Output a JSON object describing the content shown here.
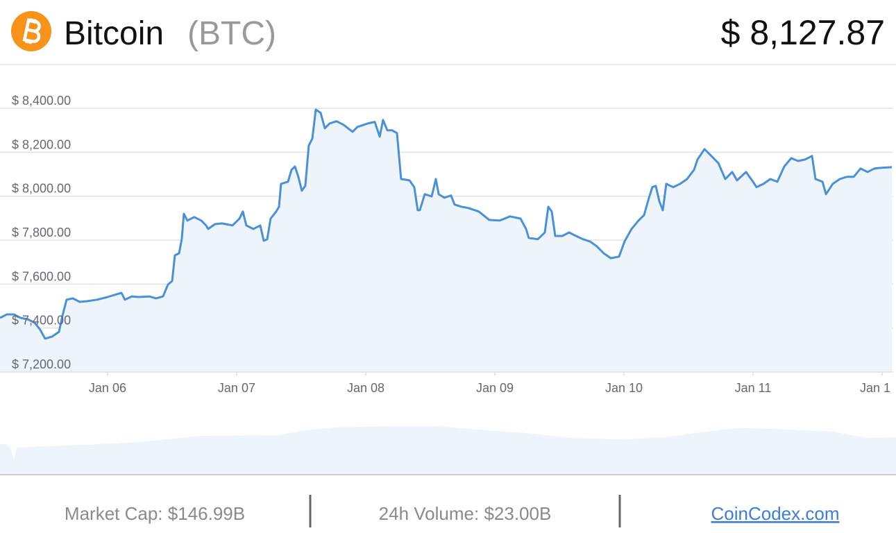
{
  "header": {
    "name": "Bitcoin",
    "symbol": "(BTC)",
    "price": "$ 8,127.87"
  },
  "chart_data": {
    "type": "line",
    "color": "#4a90d9",
    "fill": "#eef4fc",
    "grid": true,
    "xlim": [
      5.167,
      12.086
    ],
    "ylim": [
      7200,
      8400
    ],
    "xticks": [
      {
        "value": 6,
        "label": "Jan 06"
      },
      {
        "value": 7,
        "label": "Jan 07"
      },
      {
        "value": 8,
        "label": "Jan 08"
      },
      {
        "value": 9,
        "label": "Jan 09"
      },
      {
        "value": 10,
        "label": "Jan 10"
      },
      {
        "value": 11,
        "label": "Jan 11"
      },
      {
        "value": 12,
        "label": "Jan 1"
      }
    ],
    "yticks": [
      {
        "value": 7200,
        "label": "$ 7,200.00"
      },
      {
        "value": 7400,
        "label": "$ 7,400.00"
      },
      {
        "value": 7600,
        "label": "$ 7,600.00"
      },
      {
        "value": 7800,
        "label": "$ 7,800.00"
      },
      {
        "value": 8000,
        "label": "$ 8,000.00"
      },
      {
        "value": 8200,
        "label": "$ 8,200.00"
      },
      {
        "value": 8400,
        "label": "$ 8,400.00"
      }
    ],
    "x": [
      5.167,
      5.22,
      5.274,
      5.328,
      5.382,
      5.435,
      5.478,
      5.516,
      5.57,
      5.624,
      5.651,
      5.683,
      5.731,
      5.785,
      5.839,
      5.919,
      6.0,
      6.054,
      6.108,
      6.134,
      6.188,
      6.242,
      6.323,
      6.376,
      6.43,
      6.468,
      6.5,
      6.522,
      6.554,
      6.575,
      6.591,
      6.618,
      6.672,
      6.726,
      6.763,
      6.78,
      6.833,
      6.887,
      6.968,
      7.022,
      7.048,
      7.075,
      7.129,
      7.183,
      7.21,
      7.237,
      7.263,
      7.306,
      7.328,
      7.344,
      7.398,
      7.425,
      7.452,
      7.478,
      7.505,
      7.532,
      7.559,
      7.586,
      7.613,
      7.651,
      7.683,
      7.72,
      7.774,
      7.828,
      7.898,
      7.935,
      8.016,
      8.07,
      8.108,
      8.134,
      8.167,
      8.204,
      8.242,
      8.274,
      8.339,
      8.376,
      8.403,
      8.419,
      8.457,
      8.511,
      8.543,
      8.565,
      8.608,
      8.661,
      8.688,
      8.742,
      8.796,
      8.876,
      8.957,
      9.038,
      9.118,
      9.199,
      9.242,
      9.263,
      9.333,
      9.387,
      9.414,
      9.441,
      9.468,
      9.522,
      9.575,
      9.629,
      9.683,
      9.737,
      9.79,
      9.844,
      9.898,
      9.962,
      10.005,
      10.059,
      10.113,
      10.156,
      10.194,
      10.22,
      10.247,
      10.274,
      10.301,
      10.328,
      10.382,
      10.435,
      10.489,
      10.543,
      10.57,
      10.624,
      10.677,
      10.731,
      10.785,
      10.839,
      10.876,
      10.946,
      11.0,
      11.027,
      11.081,
      11.134,
      11.188,
      11.242,
      11.296,
      11.349,
      11.403,
      11.457,
      11.484,
      11.538,
      11.565,
      11.618,
      11.672,
      11.726,
      11.78,
      11.833,
      11.887,
      11.941,
      11.995,
      12.075
    ],
    "values": [
      7446,
      7462,
      7462,
      7446,
      7440,
      7424,
      7393,
      7352,
      7361,
      7383,
      7456,
      7529,
      7535,
      7519,
      7522,
      7529,
      7541,
      7551,
      7560,
      7529,
      7544,
      7541,
      7544,
      7535,
      7544,
      7598,
      7614,
      7731,
      7740,
      7804,
      7920,
      7889,
      7905,
      7889,
      7867,
      7851,
      7873,
      7876,
      7867,
      7898,
      7930,
      7867,
      7851,
      7867,
      7797,
      7804,
      7898,
      7930,
      7952,
      8056,
      8066,
      8120,
      8135,
      8088,
      8025,
      8047,
      8230,
      8262,
      8394,
      8379,
      8309,
      8331,
      8341,
      8325,
      8293,
      8315,
      8331,
      8338,
      8271,
      8347,
      8300,
      8300,
      8287,
      8078,
      8072,
      8041,
      7936,
      7936,
      8009,
      7999,
      8078,
      8009,
      7993,
      8003,
      7962,
      7952,
      7946,
      7930,
      7892,
      7889,
      7908,
      7898,
      7851,
      7810,
      7804,
      7835,
      7952,
      7930,
      7819,
      7819,
      7835,
      7819,
      7804,
      7794,
      7772,
      7740,
      7718,
      7725,
      7794,
      7851,
      7889,
      7914,
      7993,
      8041,
      8047,
      7977,
      7936,
      8056,
      8041,
      8056,
      8078,
      8120,
      8167,
      8214,
      8183,
      8151,
      8078,
      8110,
      8072,
      8110,
      8066,
      8041,
      8056,
      8078,
      8066,
      8135,
      8173,
      8160,
      8167,
      8183,
      8078,
      8066,
      8009,
      8056,
      8078,
      8088,
      8088,
      8126,
      8110,
      8126,
      8129,
      8132
    ]
  },
  "footer": {
    "market_cap": "Market Cap: $146.99B",
    "volume": "24h Volume: $23.00B",
    "link": "CoinCodex.com"
  }
}
